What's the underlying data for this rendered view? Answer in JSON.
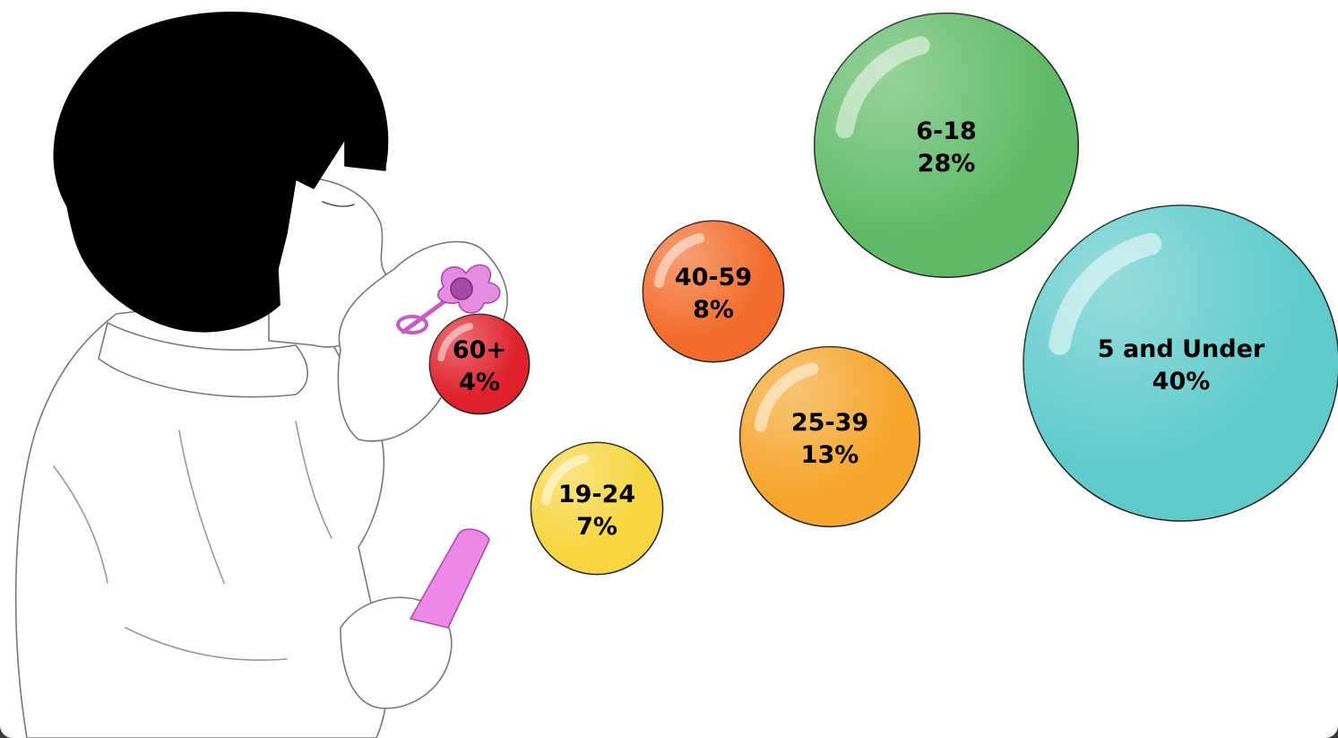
{
  "chart_data": {
    "type": "bubble",
    "title": "",
    "unit": "%",
    "categories": [
      "5 and Under",
      "6-18",
      "19-24",
      "25-39",
      "40-59",
      "60+"
    ],
    "values": [
      40,
      28,
      7,
      13,
      8,
      4
    ],
    "labels": [
      "40%",
      "28%",
      "7%",
      "13%",
      "8%",
      "4%"
    ],
    "colors": [
      "#5ecaca",
      "#5fba67",
      "#f7d53e",
      "#f5a52b",
      "#f26b2a",
      "#e0202a"
    ],
    "legend": "none",
    "grid": false
  },
  "illustration": {
    "subject": "child-blowing-bubbles",
    "wand_color": "#c85ac8",
    "bottle_color": "#ee88e6"
  }
}
